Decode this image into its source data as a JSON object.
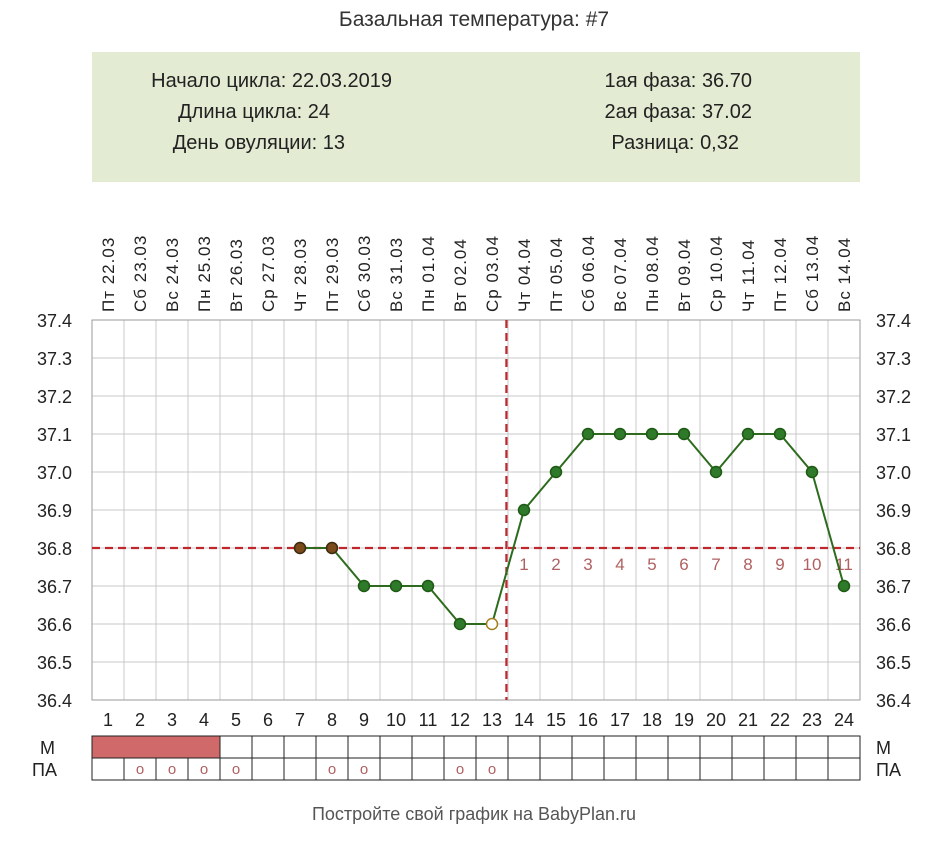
{
  "title": "Базальная температура: #7",
  "info": {
    "cycle_start_label": "Начало цикла:",
    "cycle_start": "22.03.2019",
    "cycle_length_label": "Длина цикла:",
    "cycle_length": "24",
    "ovulation_day_label": "День овуляции:",
    "ovulation_day": "13",
    "phase1_label": "1ая фаза:",
    "phase1": "36.70",
    "phase2_label": "2ая фаза:",
    "phase2": "37.02",
    "diff_label": "Разница:",
    "diff": "0,32"
  },
  "footer": "Постройте свой график на BabyPlan.ru",
  "colors": {
    "line": "#2d6b1e",
    "point": "#2f7a2a",
    "point_early": "#7a4a1a",
    "dash": "#c0272d",
    "phase_label": "#b06060",
    "period": "#d06a6a",
    "info_bg": "#e3ecd3"
  },
  "chart_data": {
    "type": "line",
    "days": [
      "1",
      "2",
      "3",
      "4",
      "5",
      "6",
      "7",
      "8",
      "9",
      "10",
      "11",
      "12",
      "13",
      "14",
      "15",
      "16",
      "17",
      "18",
      "19",
      "20",
      "21",
      "22",
      "23",
      "24"
    ],
    "dates": [
      "Пт 22.03",
      "Сб 23.03",
      "Вс 24.03",
      "Пн 25.03",
      "Вт 26.03",
      "Ср 27.03",
      "Чт 28.03",
      "Пт 29.03",
      "Сб 30.03",
      "Вс 31.03",
      "Пн 01.04",
      "Вт 02.04",
      "Ср 03.04",
      "Чт 04.04",
      "Пт 05.04",
      "Сб 06.04",
      "Вс 07.04",
      "Пн 08.04",
      "Вт 09.04",
      "Ср 10.04",
      "Чт 11.04",
      "Пт 12.04",
      "Сб 13.04",
      "Вс 14.04"
    ],
    "series": [
      {
        "values": [
          null,
          null,
          null,
          null,
          null,
          null,
          36.8,
          36.8,
          36.7,
          36.7,
          36.7,
          36.6,
          36.6,
          36.9,
          37.0,
          37.1,
          37.1,
          37.1,
          37.1,
          37.0,
          37.1,
          37.1,
          37.0,
          36.7
        ]
      }
    ],
    "ylim": [
      36.4,
      37.4
    ],
    "yticks": [
      "36.4",
      "36.5",
      "36.6",
      "36.7",
      "36.8",
      "36.9",
      "37.0",
      "37.1",
      "37.2",
      "37.3",
      "37.4"
    ],
    "coverline": 36.8,
    "ovulation_day": 13,
    "phase_labels": [
      "1",
      "2",
      "3",
      "4",
      "5",
      "6",
      "7",
      "8",
      "9",
      "10",
      "11"
    ],
    "grid": true
  },
  "rows": {
    "m_label": "М",
    "pa_label": "ПА",
    "m_marked_days": [
      1,
      2,
      3,
      4
    ],
    "pa_marked_days": [
      2,
      3,
      4,
      5,
      8,
      9,
      12,
      13
    ],
    "pa_marker": "o"
  }
}
